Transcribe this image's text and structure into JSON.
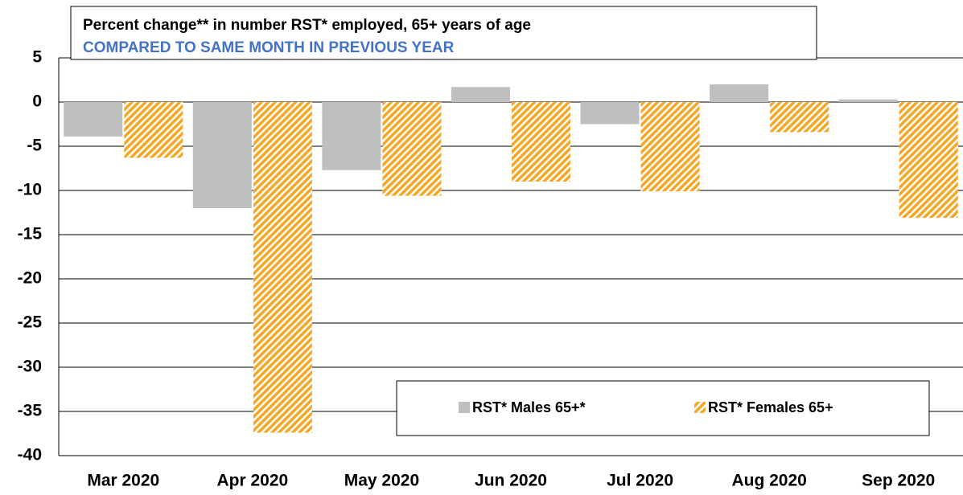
{
  "chart_data": {
    "type": "bar",
    "title": "Percent change** in number RST* employed, 65+ years of age",
    "subtitle": "COMPARED TO SAME MONTH IN PREVIOUS YEAR",
    "categories": [
      "Mar 2020",
      "Apr 2020",
      "May 2020",
      "Jun 2020",
      "Jul 2020",
      "Aug 2020",
      "Sep 2020"
    ],
    "series": [
      {
        "name": "RST* Males 65+*",
        "color": "#bfbfbf",
        "values": [
          -3.9,
          -12,
          -7.7,
          1.7,
          -2.5,
          2.0,
          0.3
        ]
      },
      {
        "name": "RST* Females 65+",
        "color": "#f5a623",
        "pattern": "hatch",
        "values": [
          -6.3,
          -37.4,
          -10.6,
          -9.0,
          -10.1,
          -3.4,
          -13.1
        ]
      }
    ],
    "ylim": [
      -40,
      5
    ],
    "yticks": [
      -40,
      -35,
      -30,
      -25,
      -20,
      -15,
      -10,
      -5,
      0,
      5
    ],
    "grid": true,
    "legend": "lower right"
  }
}
